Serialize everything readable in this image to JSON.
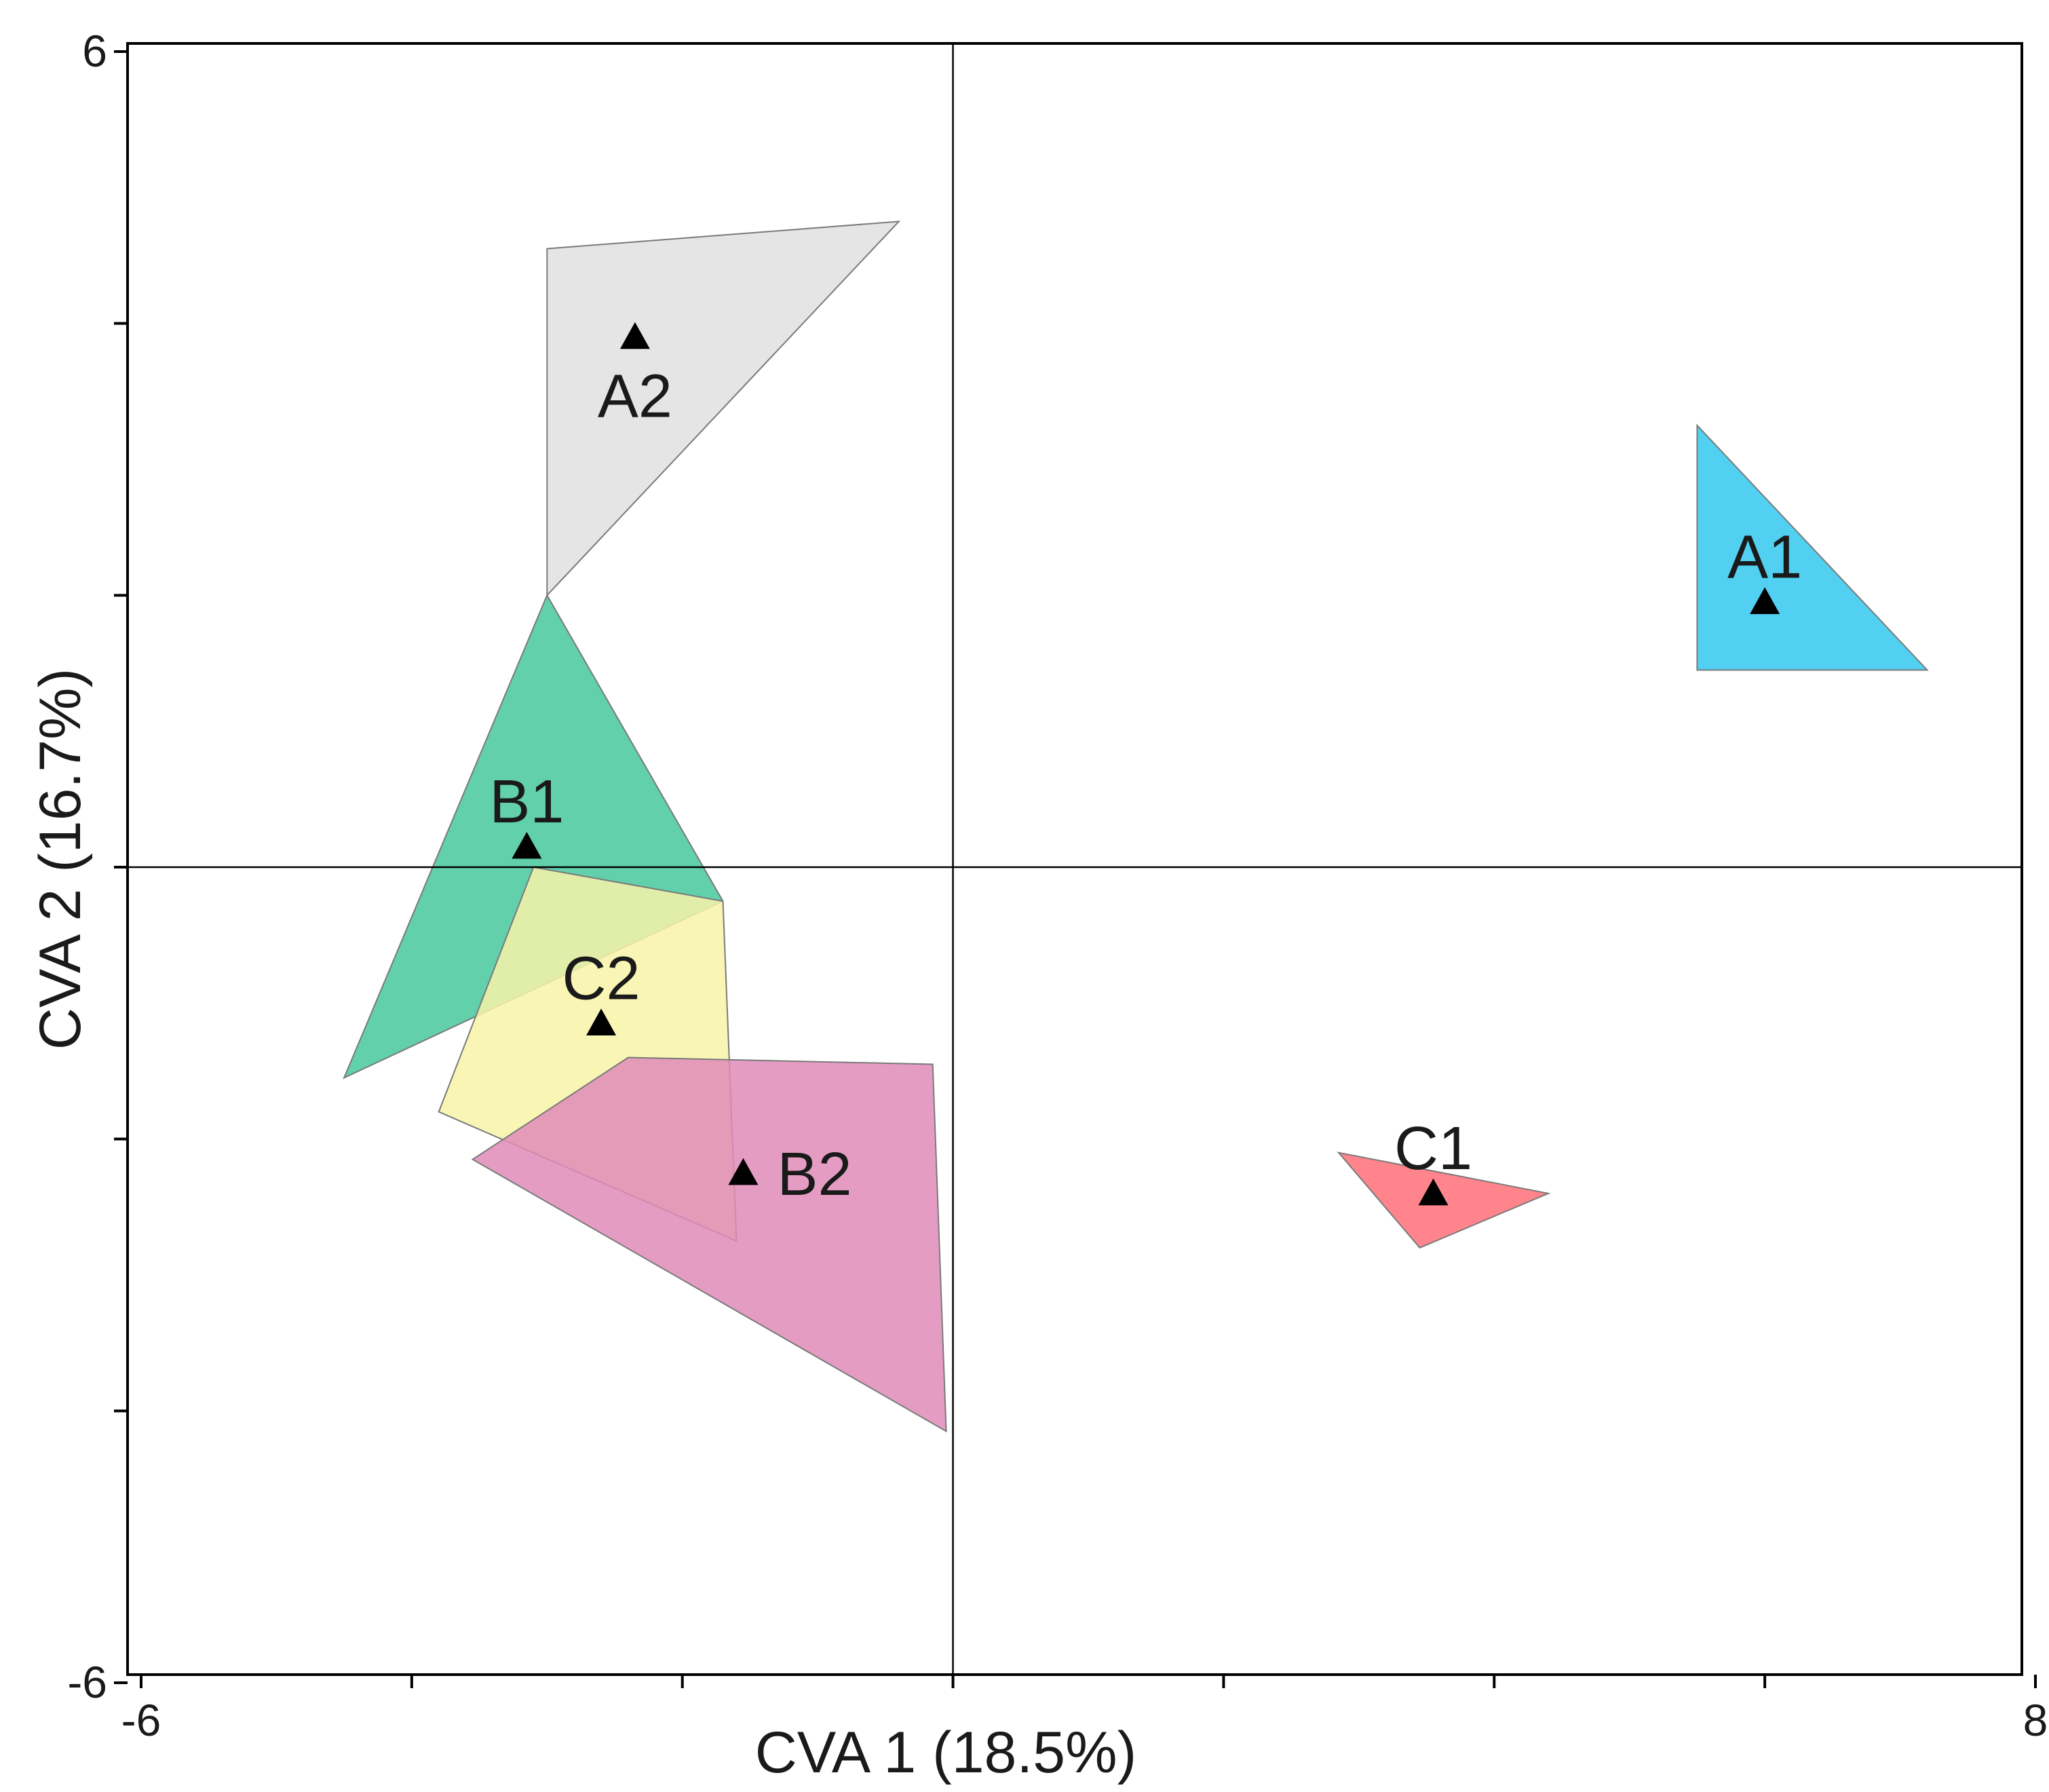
{
  "chart_data": {
    "type": "scatter",
    "title": "",
    "xlabel": "CVA 1 (18.5%)",
    "ylabel": "CVA 2 (16.7%)",
    "xlim": [
      -6,
      8
    ],
    "ylim": [
      -6,
      6
    ],
    "x_tick_labels": [
      "-6",
      "8"
    ],
    "y_tick_labels": [
      "6",
      "-6"
    ],
    "x_minor_ticks": [
      -6,
      -4,
      -2,
      0,
      2,
      4,
      6,
      8
    ],
    "y_minor_ticks": [
      -6,
      -4,
      -2,
      0,
      2,
      4,
      6
    ],
    "zero_lines": true,
    "grid": false,
    "groups": [
      {
        "name": "A2",
        "color": "#e0e0e0",
        "centroid": [
          -2.35,
          3.9
        ],
        "label_anchor": "below",
        "hull": [
          [
            -3.0,
            4.55
          ],
          [
            -0.4,
            4.75
          ],
          [
            -3.0,
            2.0
          ]
        ]
      },
      {
        "name": "B1",
        "color": "#45c89c",
        "centroid": [
          -3.15,
          0.15
        ],
        "label_anchor": "above",
        "hull": [
          [
            -3.0,
            2.0
          ],
          [
            -1.7,
            -0.25
          ],
          [
            -4.5,
            -1.55
          ]
        ]
      },
      {
        "name": "C2",
        "color": "#f8f3a8",
        "centroid": [
          -2.6,
          -1.15
        ],
        "label_anchor": "above",
        "hull": [
          [
            -3.1,
            0.0
          ],
          [
            -1.7,
            -0.25
          ],
          [
            -1.6,
            -2.75
          ],
          [
            -3.8,
            -1.8
          ]
        ]
      },
      {
        "name": "B2",
        "color": "#e08bb8",
        "centroid": [
          -1.55,
          -2.25
        ],
        "label_anchor": "right",
        "hull": [
          [
            -2.4,
            -1.4
          ],
          [
            -0.15,
            -1.45
          ],
          [
            -0.05,
            -4.15
          ],
          [
            -3.55,
            -2.15
          ]
        ]
      },
      {
        "name": "A1",
        "color": "#33c8ee",
        "centroid": [
          6.0,
          1.95
        ],
        "label_anchor": "above",
        "hull": [
          [
            5.5,
            3.25
          ],
          [
            7.2,
            1.45
          ],
          [
            5.5,
            1.45
          ]
        ]
      },
      {
        "name": "C1",
        "color": "#ff6f77",
        "centroid": [
          3.55,
          -2.4
        ],
        "label_anchor": "above",
        "hull": [
          [
            2.85,
            -2.1
          ],
          [
            4.4,
            -2.4
          ],
          [
            3.45,
            -2.8
          ]
        ]
      }
    ]
  }
}
